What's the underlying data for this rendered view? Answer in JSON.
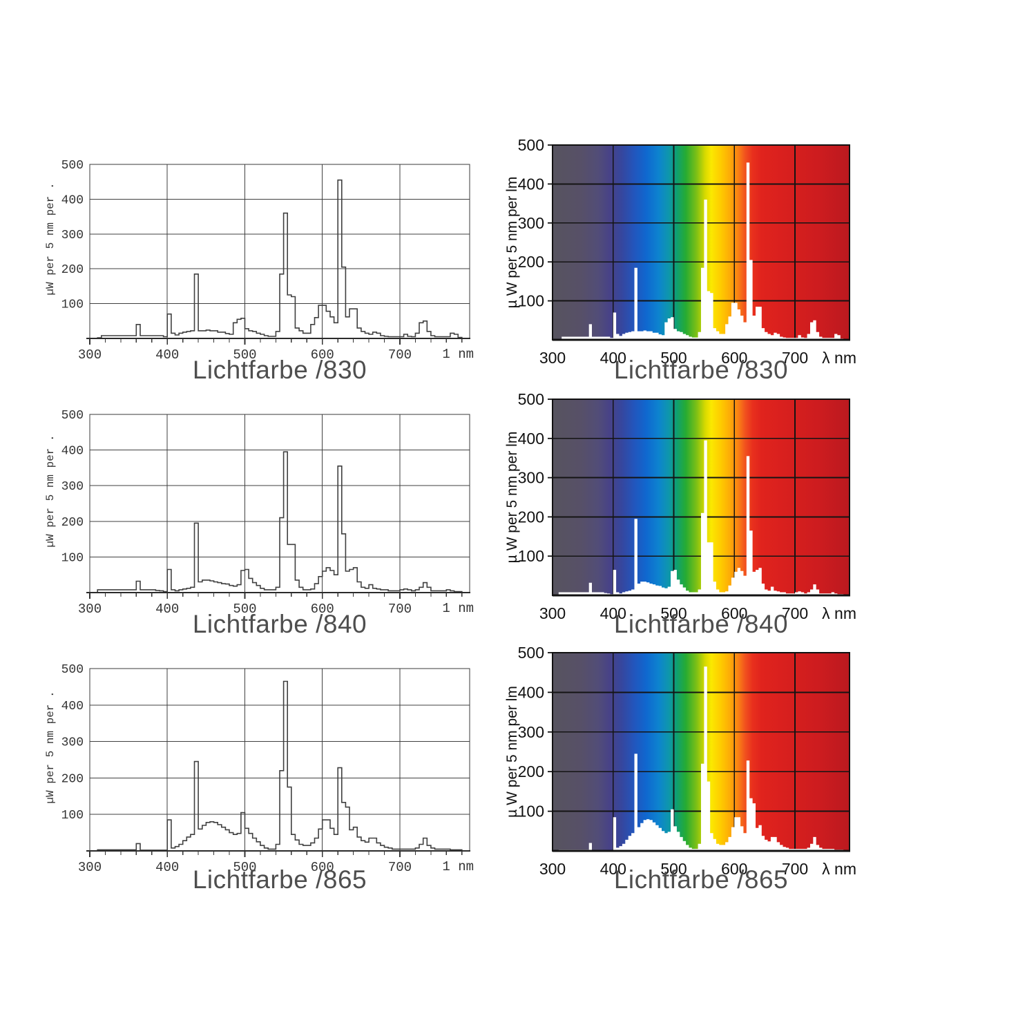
{
  "page": {
    "background": "#ffffff"
  },
  "chart_data": {
    "type": "area",
    "description": "Spectral power distributions of three fluorescent lamp light colors, each shown twice: monochrome stepped line chart (left column) and spectrum-colored chart with white area fill (right column)",
    "x_start": 310,
    "x_step": 5,
    "x_range": [
      300,
      790
    ],
    "y_range": [
      0,
      500
    ],
    "x_ticks": [
      300,
      400,
      500,
      600,
      700
    ],
    "y_ticks": [
      100,
      200,
      300,
      400,
      500
    ],
    "left_variant": {
      "y_label": "µW per 5 nm per .",
      "x_unit_label": "1 nm",
      "line_color": "#3f3f3f",
      "grid_color": "#3f3f3f",
      "text_color": "#333333",
      "background": "#ffffff"
    },
    "right_variant": {
      "y_label": "µ W per 5 nm per lm",
      "x_unit_label": "λ nm",
      "grid_color": "#141414",
      "text_color": "#111111",
      "area_fill": "#ffffff",
      "spectrum_gradient": [
        {
          "nm": 300,
          "color": "#57545f"
        },
        {
          "nm": 345,
          "color": "#575067"
        },
        {
          "nm": 375,
          "color": "#524d77"
        },
        {
          "nm": 395,
          "color": "#474288"
        },
        {
          "nm": 415,
          "color": "#35479f"
        },
        {
          "nm": 435,
          "color": "#2256bd"
        },
        {
          "nm": 455,
          "color": "#0f68cf"
        },
        {
          "nm": 475,
          "color": "#0d83cf"
        },
        {
          "nm": 492,
          "color": "#0e97ab"
        },
        {
          "nm": 505,
          "color": "#0fa071"
        },
        {
          "nm": 520,
          "color": "#27ab32"
        },
        {
          "nm": 538,
          "color": "#7fc015"
        },
        {
          "nm": 552,
          "color": "#d8da00"
        },
        {
          "nm": 562,
          "color": "#fbe800"
        },
        {
          "nm": 578,
          "color": "#fecb00"
        },
        {
          "nm": 593,
          "color": "#fdaa07"
        },
        {
          "nm": 607,
          "color": "#f97f15"
        },
        {
          "nm": 618,
          "color": "#f1511e"
        },
        {
          "nm": 630,
          "color": "#e8301d"
        },
        {
          "nm": 645,
          "color": "#e0231d"
        },
        {
          "nm": 690,
          "color": "#d71f1e"
        },
        {
          "nm": 740,
          "color": "#cd1c1f"
        },
        {
          "nm": 790,
          "color": "#bb191f"
        }
      ]
    },
    "series": [
      {
        "name": "Lichtfarbe /830",
        "values": [
          2,
          8,
          8,
          8,
          8,
          8,
          8,
          8,
          8,
          8,
          40,
          8,
          8,
          8,
          8,
          8,
          8,
          5,
          70,
          15,
          10,
          15,
          18,
          20,
          22,
          185,
          22,
          22,
          24,
          22,
          22,
          18,
          18,
          14,
          12,
          45,
          55,
          58,
          28,
          22,
          20,
          15,
          12,
          8,
          6,
          6,
          20,
          185,
          360,
          125,
          120,
          30,
          22,
          15,
          15,
          40,
          60,
          95,
          95,
          78,
          62,
          45,
          455,
          205,
          62,
          85,
          85,
          30,
          20,
          15,
          12,
          18,
          15,
          8,
          6,
          5,
          5,
          5,
          5,
          12,
          6,
          5,
          15,
          45,
          50,
          20,
          8,
          5,
          5,
          5,
          5,
          15,
          12,
          3
        ]
      },
      {
        "name": "Lichtfarbe /840",
        "values": [
          8,
          8,
          8,
          8,
          8,
          8,
          8,
          8,
          8,
          8,
          32,
          8,
          8,
          8,
          8,
          6,
          5,
          3,
          65,
          8,
          5,
          8,
          10,
          12,
          15,
          195,
          30,
          35,
          35,
          33,
          30,
          28,
          25,
          24,
          20,
          18,
          22,
          62,
          65,
          40,
          28,
          20,
          12,
          8,
          8,
          8,
          15,
          210,
          395,
          135,
          135,
          35,
          15,
          8,
          8,
          10,
          25,
          45,
          60,
          70,
          62,
          50,
          355,
          165,
          60,
          65,
          70,
          30,
          15,
          12,
          22,
          12,
          10,
          8,
          8,
          5,
          5,
          5,
          8,
          10,
          8,
          5,
          8,
          15,
          28,
          15,
          5,
          5,
          5,
          5,
          8,
          5,
          3,
          3
        ]
      },
      {
        "name": "Lichtfarbe /865",
        "values": [
          3,
          3,
          3,
          3,
          3,
          3,
          3,
          3,
          3,
          3,
          20,
          2,
          2,
          2,
          2,
          2,
          2,
          2,
          85,
          8,
          12,
          18,
          28,
          38,
          45,
          245,
          60,
          70,
          78,
          80,
          78,
          72,
          65,
          58,
          50,
          45,
          48,
          105,
          62,
          48,
          35,
          25,
          15,
          8,
          5,
          5,
          18,
          220,
          465,
          175,
          45,
          30,
          18,
          15,
          15,
          22,
          35,
          60,
          85,
          85,
          62,
          45,
          228,
          133,
          120,
          58,
          65,
          38,
          28,
          24,
          35,
          35,
          22,
          15,
          10,
          8,
          5,
          5,
          5,
          5,
          5,
          5,
          8,
          18,
          35,
          15,
          8,
          5,
          5,
          5,
          5,
          3,
          3,
          3
        ]
      }
    ]
  }
}
